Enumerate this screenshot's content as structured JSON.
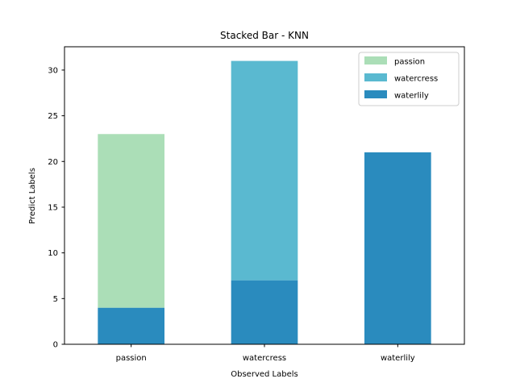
{
  "chart_data": {
    "type": "bar",
    "stacked": true,
    "title": "Stacked Bar - KNN",
    "xlabel": "Observed Labels",
    "ylabel": "Predict Labels",
    "categories": [
      "passion",
      "watercress",
      "waterlily"
    ],
    "ylim": [
      0,
      32.55
    ],
    "yticks": [
      0,
      5,
      10,
      15,
      20,
      25,
      30
    ],
    "series": [
      {
        "name": "passion",
        "color": "#abdeb7",
        "values": [
          19,
          0,
          0
        ]
      },
      {
        "name": "watercress",
        "color": "#5ab9d0",
        "values": [
          0,
          24,
          0
        ]
      },
      {
        "name": "waterlily",
        "color": "#2a8bbe",
        "values": [
          4,
          7,
          21
        ]
      }
    ],
    "stack_order": [
      "waterlily",
      "passion",
      "watercress"
    ],
    "legend": {
      "placement": "upper-right",
      "entries": [
        "passion",
        "watercress",
        "waterlily"
      ]
    },
    "grid": false
  }
}
